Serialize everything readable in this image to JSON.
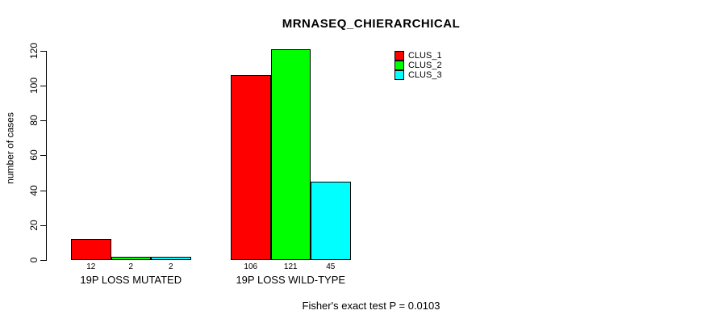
{
  "chart_data": {
    "type": "bar",
    "title": "MRNASEQ_CHIERARCHICAL",
    "ylabel": "number of cases",
    "xlabel": "",
    "ylim": [
      0,
      120
    ],
    "yticks": [
      0,
      20,
      40,
      60,
      80,
      100,
      120
    ],
    "categories": [
      "19P LOSS MUTATED",
      "19P LOSS WILD-TYPE"
    ],
    "series": [
      {
        "name": "CLUS_1",
        "color": "#ff0000",
        "values": [
          12,
          106
        ]
      },
      {
        "name": "CLUS_2",
        "color": "#00ff00",
        "values": [
          2,
          121
        ]
      },
      {
        "name": "CLUS_3",
        "color": "#00ffff",
        "values": [
          2,
          45
        ]
      }
    ],
    "bar_value_labels": [
      [
        "12",
        "2",
        "2"
      ],
      [
        "106",
        "121",
        "45"
      ]
    ],
    "legend": {
      "position": "top-right",
      "entries": [
        "CLUS_1",
        "CLUS_2",
        "CLUS_3"
      ]
    },
    "annotation": "Fisher's exact test P = 0.0103",
    "grid": false,
    "axis_color": "#000000",
    "background_color": "#ffffff"
  }
}
